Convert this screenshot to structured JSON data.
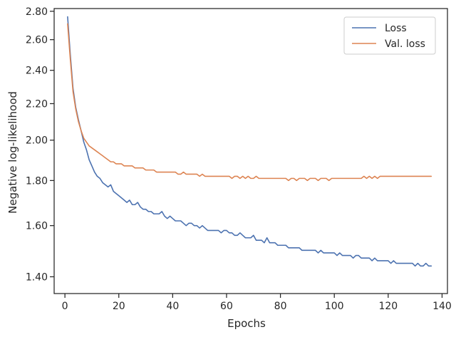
{
  "chart_data": {
    "type": "line",
    "title": "",
    "xlabel": "Epochs",
    "ylabel": "Negative log-likelihood",
    "xlim": [
      -4,
      142
    ],
    "ylim": [
      1.34,
      2.82
    ],
    "y_scale": "log",
    "xticks": [
      0,
      20,
      40,
      60,
      80,
      100,
      120,
      140
    ],
    "yticks": [
      1.4,
      1.6,
      1.8,
      2.0,
      2.2,
      2.4,
      2.6,
      2.8
    ],
    "xtick_labels": [
      "0",
      "20",
      "40",
      "60",
      "80",
      "100",
      "120",
      "140"
    ],
    "ytick_labels": [
      "1.40",
      "1.60",
      "1.80",
      "2.00",
      "2.20",
      "2.40",
      "2.60",
      "2.80"
    ],
    "grid": false,
    "legend_position": "top-right",
    "series": [
      {
        "name": "Loss",
        "color": "#4c72b0",
        "x_start": 1,
        "values": [
          2.76,
          2.5,
          2.29,
          2.18,
          2.11,
          2.05,
          1.99,
          1.95,
          1.9,
          1.87,
          1.84,
          1.82,
          1.81,
          1.79,
          1.78,
          1.77,
          1.78,
          1.75,
          1.74,
          1.73,
          1.72,
          1.71,
          1.7,
          1.71,
          1.69,
          1.69,
          1.7,
          1.68,
          1.67,
          1.67,
          1.66,
          1.66,
          1.65,
          1.65,
          1.65,
          1.66,
          1.64,
          1.63,
          1.64,
          1.63,
          1.62,
          1.62,
          1.62,
          1.61,
          1.6,
          1.61,
          1.61,
          1.6,
          1.6,
          1.59,
          1.6,
          1.59,
          1.58,
          1.58,
          1.58,
          1.58,
          1.58,
          1.57,
          1.58,
          1.58,
          1.57,
          1.57,
          1.56,
          1.56,
          1.57,
          1.56,
          1.55,
          1.55,
          1.55,
          1.56,
          1.54,
          1.54,
          1.54,
          1.53,
          1.55,
          1.53,
          1.53,
          1.53,
          1.52,
          1.52,
          1.52,
          1.52,
          1.51,
          1.51,
          1.51,
          1.51,
          1.51,
          1.5,
          1.5,
          1.5,
          1.5,
          1.5,
          1.5,
          1.49,
          1.5,
          1.49,
          1.49,
          1.49,
          1.49,
          1.49,
          1.48,
          1.49,
          1.48,
          1.48,
          1.48,
          1.48,
          1.47,
          1.48,
          1.48,
          1.47,
          1.47,
          1.47,
          1.47,
          1.46,
          1.47,
          1.46,
          1.46,
          1.46,
          1.46,
          1.46,
          1.45,
          1.46,
          1.45,
          1.45,
          1.45,
          1.45,
          1.45,
          1.45,
          1.45,
          1.44,
          1.45,
          1.44,
          1.44,
          1.45,
          1.44,
          1.44
        ]
      },
      {
        "name": "Val. loss",
        "color": "#dd8452",
        "x_start": 1,
        "values": [
          2.71,
          2.47,
          2.27,
          2.17,
          2.1,
          2.05,
          2.01,
          1.99,
          1.97,
          1.96,
          1.95,
          1.94,
          1.93,
          1.92,
          1.91,
          1.9,
          1.89,
          1.89,
          1.88,
          1.88,
          1.88,
          1.87,
          1.87,
          1.87,
          1.87,
          1.86,
          1.86,
          1.86,
          1.86,
          1.85,
          1.85,
          1.85,
          1.85,
          1.84,
          1.84,
          1.84,
          1.84,
          1.84,
          1.84,
          1.84,
          1.84,
          1.83,
          1.83,
          1.84,
          1.83,
          1.83,
          1.83,
          1.83,
          1.83,
          1.82,
          1.83,
          1.82,
          1.82,
          1.82,
          1.82,
          1.82,
          1.82,
          1.82,
          1.82,
          1.82,
          1.82,
          1.81,
          1.82,
          1.82,
          1.81,
          1.82,
          1.81,
          1.82,
          1.81,
          1.81,
          1.82,
          1.81,
          1.81,
          1.81,
          1.81,
          1.81,
          1.81,
          1.81,
          1.81,
          1.81,
          1.81,
          1.81,
          1.8,
          1.81,
          1.81,
          1.8,
          1.81,
          1.81,
          1.81,
          1.8,
          1.81,
          1.81,
          1.81,
          1.8,
          1.81,
          1.81,
          1.81,
          1.8,
          1.81,
          1.81,
          1.81,
          1.81,
          1.81,
          1.81,
          1.81,
          1.81,
          1.81,
          1.81,
          1.81,
          1.81,
          1.82,
          1.81,
          1.82,
          1.81,
          1.82,
          1.81,
          1.82,
          1.82,
          1.82,
          1.82,
          1.82,
          1.82,
          1.82,
          1.82,
          1.82,
          1.82,
          1.82,
          1.82,
          1.82,
          1.82,
          1.82,
          1.82,
          1.82,
          1.82,
          1.82,
          1.82
        ]
      }
    ]
  }
}
